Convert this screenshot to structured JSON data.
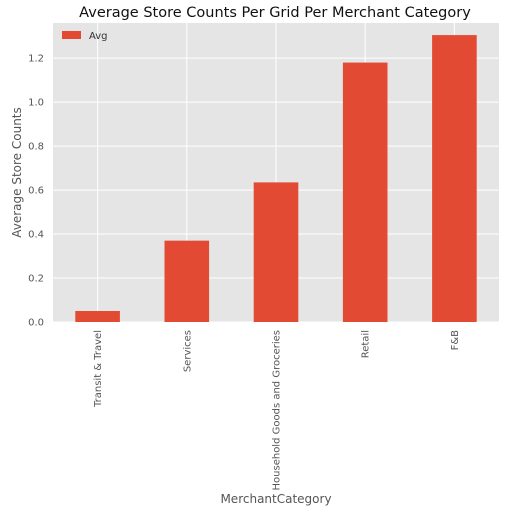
{
  "chart_data": {
    "type": "bar",
    "title": "Average Store Counts Per Grid Per Merchant Category",
    "xlabel": "MerchantCategory",
    "ylabel": "Average Store Counts",
    "categories": [
      "Transit & Travel",
      "Services",
      "Household Goods and Groceries",
      "Retail",
      "F&B"
    ],
    "series": [
      {
        "name": "Avg",
        "values": [
          0.05,
          0.37,
          0.635,
          1.18,
          1.305
        ],
        "color": "#e24a33"
      }
    ],
    "ylim": [
      0,
      1.36
    ],
    "yticks": [
      0.0,
      0.2,
      0.4,
      0.6,
      0.8,
      1.0,
      1.2
    ],
    "ytick_labels": [
      "0.0",
      "0.2",
      "0.4",
      "0.6",
      "0.8",
      "1.0",
      "1.2"
    ],
    "grid": true,
    "legend_position": "top-left",
    "colors": {
      "plot_background": "#e5e5e5",
      "grid": "#ffffff",
      "bar": "#e24a33"
    }
  }
}
